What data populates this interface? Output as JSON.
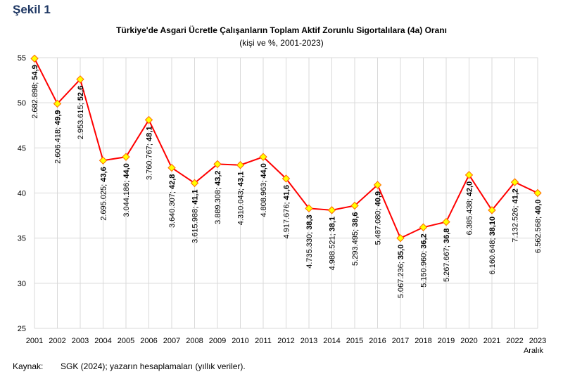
{
  "figure_label": "Şekil 1",
  "source": {
    "label": "Kaynak:",
    "text": "SGK (2024); yazarın hesaplamaları (yıllık veriler)."
  },
  "chart_data": {
    "type": "line",
    "title": "Türkiye'de Asgari Ücretle Çalışanların Toplam Aktif Zorunlu Sigortalılara (4a) Oranı",
    "subtitle": "(kişi ve %, 2001-2023)",
    "x": [
      "2001",
      "2002",
      "2003",
      "2004",
      "2005",
      "2006",
      "2007",
      "2008",
      "2009",
      "2010",
      "2011",
      "2012",
      "2013",
      "2014",
      "2015",
      "2016",
      "2017",
      "2018",
      "2019",
      "2020",
      "2021",
      "2022",
      "2023"
    ],
    "x_note": "Aralık",
    "values": [
      54.9,
      49.9,
      52.6,
      43.6,
      44.0,
      48.1,
      42.8,
      41.1,
      43.2,
      43.1,
      44.0,
      41.6,
      38.3,
      38.1,
      38.6,
      40.9,
      35.0,
      36.2,
      36.8,
      42.0,
      38.1,
      41.2,
      40.0
    ],
    "value_labels": [
      "54,9",
      "49,9",
      "52,6",
      "43,6",
      "44,0",
      "48,1",
      "42,8",
      "41,1",
      "43,2",
      "43,1",
      "44,0",
      "41,6",
      "38,3",
      "38,1",
      "38,6",
      "40,9",
      "35,0",
      "36,2",
      "36,8",
      "42,0",
      "38,10",
      "41,2",
      "40,0"
    ],
    "counts": [
      "2.682.898",
      "2.606.418",
      "2.953.615",
      "2.695.025",
      "3.044.186",
      "3.760.767",
      "3.640.307",
      "3.615.988",
      "3.889.308",
      "4.310.043",
      "4.808.963",
      "4.917.676",
      "4.735.330",
      "4.988.521",
      "5.293.495",
      "5.487.080",
      "5.067.236",
      "5.150.960",
      "5.267.667",
      "6.385.438",
      "6.160.648",
      "7.132.526",
      "6.562.568"
    ],
    "ylim": [
      25,
      55
    ],
    "yticks": [
      25,
      30,
      35,
      40,
      45,
      50,
      55
    ],
    "grid": true,
    "colors": {
      "line": "#ff0000",
      "marker_fill": "#ffff00",
      "marker_stroke": "#ff6600",
      "grid": "#d9d9d9"
    }
  }
}
